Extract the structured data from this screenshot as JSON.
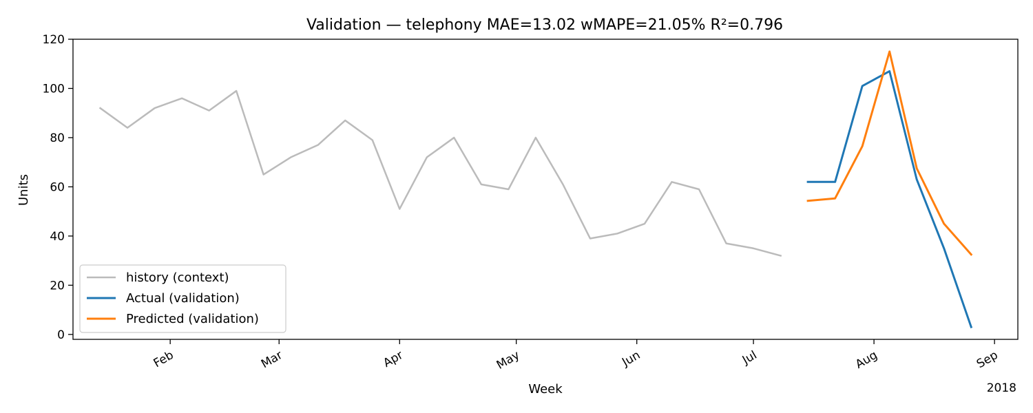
{
  "chart_data": {
    "type": "line",
    "title": "Validation — telephony   MAE=13.02  wMAPE=21.05%  R²=0.796",
    "xlabel": "Week",
    "ylabel": "Units",
    "year_label": "2018",
    "ylim": [
      -2,
      120
    ],
    "xlim": [
      "2018-01-07",
      "2018-09-07"
    ],
    "y_ticks": [
      0,
      20,
      40,
      60,
      80,
      100,
      120
    ],
    "x_ticks": [
      {
        "date": "2018-02-01",
        "label": "Feb"
      },
      {
        "date": "2018-03-01",
        "label": "Mar"
      },
      {
        "date": "2018-04-01",
        "label": "Apr"
      },
      {
        "date": "2018-05-01",
        "label": "May"
      },
      {
        "date": "2018-06-01",
        "label": "Jun"
      },
      {
        "date": "2018-07-01",
        "label": "Jul"
      },
      {
        "date": "2018-08-01",
        "label": "Aug"
      },
      {
        "date": "2018-09-01",
        "label": "Sep"
      }
    ],
    "legend_position": "lower-left",
    "grid": false,
    "series": [
      {
        "name": "history (context)",
        "color": "#bbbbbb",
        "width": 2.5,
        "x": [
          "2018-01-14",
          "2018-01-21",
          "2018-01-28",
          "2018-02-04",
          "2018-02-11",
          "2018-02-18",
          "2018-02-25",
          "2018-03-04",
          "2018-03-11",
          "2018-03-18",
          "2018-03-25",
          "2018-04-01",
          "2018-04-08",
          "2018-04-15",
          "2018-04-22",
          "2018-04-29",
          "2018-05-06",
          "2018-05-13",
          "2018-05-20",
          "2018-05-27",
          "2018-06-03",
          "2018-06-10",
          "2018-06-17",
          "2018-06-24",
          "2018-07-01",
          "2018-07-08"
        ],
        "y": [
          92,
          84,
          92,
          96,
          91,
          99,
          65,
          72,
          77,
          87,
          79,
          51,
          72,
          80,
          61,
          59,
          80,
          61,
          39,
          41,
          45,
          62,
          59,
          37,
          35,
          32
        ]
      },
      {
        "name": "Actual (validation)",
        "color": "#1f77b4",
        "width": 3,
        "x": [
          "2018-07-15",
          "2018-07-22",
          "2018-07-29",
          "2018-08-05",
          "2018-08-12",
          "2018-08-19",
          "2018-08-26"
        ],
        "y": [
          62,
          62,
          101,
          107,
          63,
          35,
          3
        ]
      },
      {
        "name": "Predicted (validation)",
        "color": "#ff7f0e",
        "width": 3,
        "x": [
          "2018-07-15",
          "2018-07-22",
          "2018-07-29",
          "2018-08-05",
          "2018-08-12",
          "2018-08-19",
          "2018-08-26"
        ],
        "y": [
          54.3,
          55.3,
          76.5,
          115,
          67.5,
          45,
          32.5
        ]
      }
    ]
  }
}
